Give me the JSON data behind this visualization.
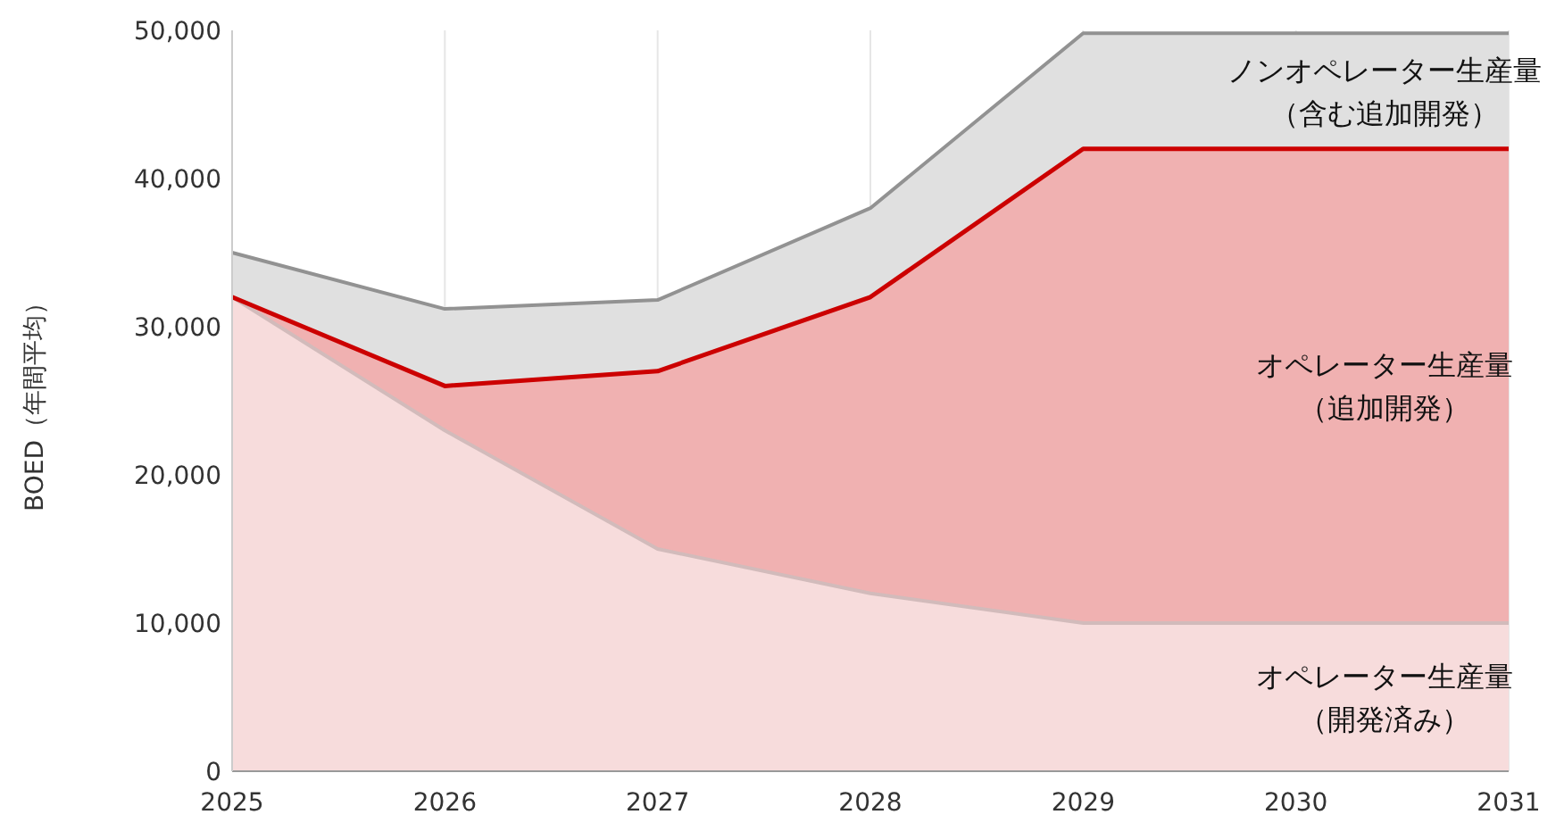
{
  "chart_data": {
    "type": "area",
    "stacked": true,
    "ylabel": "BOED（年間平均）",
    "x": [
      2025,
      2026,
      2027,
      2028,
      2029,
      2030,
      2031
    ],
    "series": [
      {
        "name": "オペレーター生産量（開発済み）",
        "color": "#f7dcdc",
        "values": [
          32000,
          23000,
          15000,
          12000,
          10000,
          10000,
          10000
        ]
      },
      {
        "name": "オペレーター生産量（追加開発）",
        "color": "#f0b1b1",
        "values": [
          0,
          3000,
          12000,
          20000,
          32000,
          32000,
          32000
        ]
      },
      {
        "name": "ノンオペレーター生産量（含む追加開発）",
        "color": "#e0e0e0",
        "values": [
          3000,
          5200,
          4800,
          6000,
          7800,
          7800,
          7800
        ]
      }
    ],
    "xlim": [
      2025,
      2031
    ],
    "xticks": [
      2025,
      2026,
      2027,
      2028,
      2029,
      2030,
      2031
    ],
    "ylim": [
      0,
      50000
    ],
    "yticks": [
      {
        "value": 0,
        "label": "0"
      },
      {
        "value": 10000,
        "label": "10,000"
      },
      {
        "value": 20000,
        "label": "20,000"
      },
      {
        "value": 30000,
        "label": "30,000"
      },
      {
        "value": 40000,
        "label": "40,000"
      },
      {
        "value": 50000,
        "label": "50,000"
      }
    ],
    "grid": "x"
  }
}
